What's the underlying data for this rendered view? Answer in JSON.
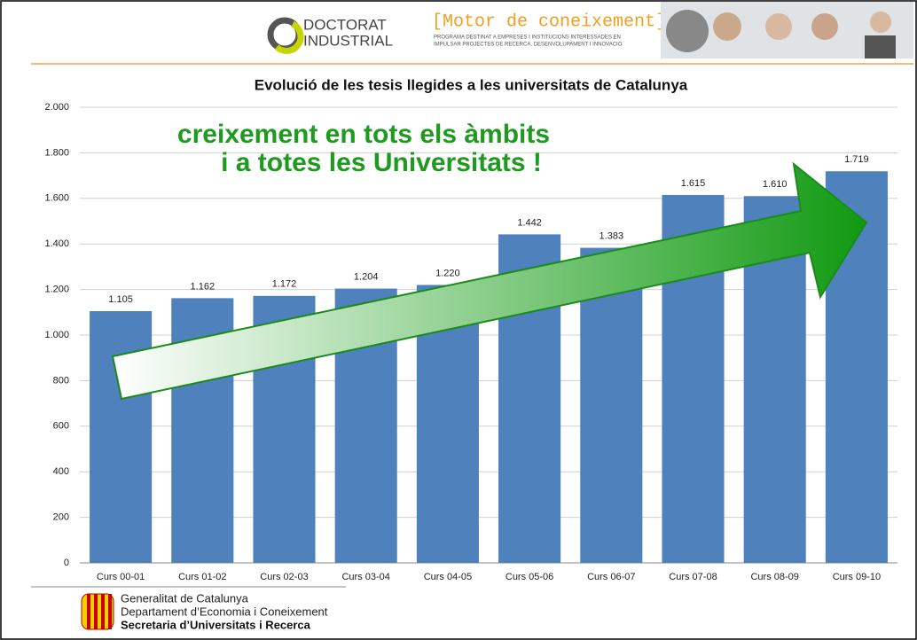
{
  "header": {
    "brand_line1": "DOCTORAT",
    "brand_line2": "INDUSTRIAL",
    "motto": "[Motor de coneixement]",
    "tagline1": "PROGRAMA DESTINAT A EMPRESES I INSTITUCIONS INTERESSADES EN",
    "tagline2": "IMPULSAR PROJECTES DE RECERCA, DESENVOLUPAMENT I INNOVACIÓ"
  },
  "chart_data": {
    "type": "bar",
    "title": "Evolució de les tesis llegides a les universitats de Catalunya",
    "annotations": [
      "creixement en tots els àmbits",
      "i a totes les Universitats !"
    ],
    "categories": [
      "Curs 00-01",
      "Curs 01-02",
      "Curs 02-03",
      "Curs 03-04",
      "Curs 04-05",
      "Curs 05-06",
      "Curs 06-07",
      "Curs 07-08",
      "Curs 08-09",
      "Curs 09-10"
    ],
    "values": [
      1105,
      1162,
      1172,
      1204,
      1220,
      1442,
      1383,
      1615,
      1610,
      1719
    ],
    "value_labels": [
      "1.105",
      "1.162",
      "1.172",
      "1.204",
      "1.220",
      "1.442",
      "1.383",
      "1.615",
      "1.610",
      "1.719"
    ],
    "color": "#4f81bd",
    "ylim": [
      0,
      2000
    ],
    "yticks": [
      0,
      200,
      400,
      600,
      800,
      {
        "value": 1000,
        "label": "1.000"
      },
      {
        "value": 1200,
        "label": "1.200"
      },
      {
        "value": 1400,
        "label": "1.400"
      },
      {
        "value": 1600,
        "label": "1.600"
      },
      {
        "value": 1800,
        "label": "1.800"
      },
      {
        "value": 2000,
        "label": "2.000"
      }
    ],
    "grid": true
  },
  "footer": {
    "line1": "Generalitat de Catalunya",
    "line2": "Departament d’Economia i Coneixement",
    "line3": "Secretaria d’Universitats i Recerca"
  }
}
